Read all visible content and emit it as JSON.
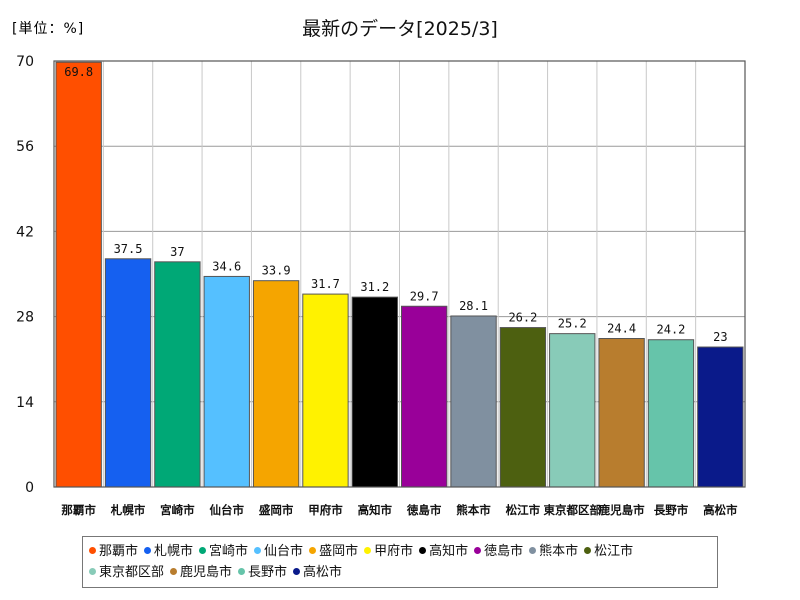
{
  "unit_label": "[単位：%]",
  "chart_data": {
    "type": "bar",
    "title": "最新のデータ[2025/3]",
    "categories": [
      "那覇市",
      "札幌市",
      "宮崎市",
      "仙台市",
      "盛岡市",
      "甲府市",
      "高知市",
      "徳島市",
      "熊本市",
      "松江市",
      "東京都区部",
      "鹿児島市",
      "長野市",
      "高松市"
    ],
    "values": [
      69.8,
      37.5,
      37,
      34.6,
      33.9,
      31.7,
      31.2,
      29.7,
      28.1,
      26.2,
      25.2,
      24.4,
      24.2,
      23
    ],
    "value_labels": [
      "69.8",
      "37.5",
      "37",
      "34.6",
      "33.9",
      "31.7",
      "31.2",
      "29.7",
      "28.1",
      "26.2",
      "25.2",
      "24.4",
      "24.2",
      "23"
    ],
    "colors": [
      "#ff4f00",
      "#1560f0",
      "#00a876",
      "#55c0ff",
      "#f5a500",
      "#fff200",
      "#000000",
      "#990099",
      "#8090a0",
      "#4d6010",
      "#88cbb8",
      "#b87d2e",
      "#66c4aa",
      "#0a1a8a"
    ],
    "yticks": [
      "0",
      "14",
      "28",
      "42",
      "56",
      "70"
    ],
    "ylim": [
      0,
      70
    ],
    "grid": true,
    "legend": "bottom"
  }
}
